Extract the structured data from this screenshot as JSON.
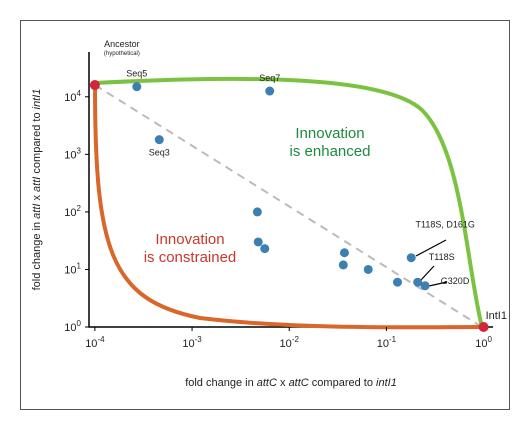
{
  "chart_data": {
    "type": "scatter",
    "xlabel": [
      "fold change in ",
      "attC",
      " x ",
      "attC",
      " compared to ",
      "intI1"
    ],
    "ylabel": [
      "fold change in ",
      "attI",
      " x ",
      "attI",
      " compared to ",
      "intI1"
    ],
    "xscale": "log",
    "yscale": "log",
    "xlim": [
      8.7e-05,
      1.25
    ],
    "ylim": [
      1,
      60000
    ],
    "xticks": [
      {
        "value": 0.0001,
        "label": "10",
        "sup": "-4"
      },
      {
        "value": 0.001,
        "label": "10",
        "sup": "-3"
      },
      {
        "value": 0.01,
        "label": "10",
        "sup": "-2"
      },
      {
        "value": 0.1,
        "label": "10",
        "sup": "-1"
      },
      {
        "value": 1,
        "label": "10",
        "sup": "0"
      }
    ],
    "yticks": [
      {
        "value": 1,
        "label": "10",
        "sup": "0"
      },
      {
        "value": 10,
        "label": "10",
        "sup": "1"
      },
      {
        "value": 100,
        "label": "10",
        "sup": "2"
      },
      {
        "value": 1000,
        "label": "10",
        "sup": "3"
      },
      {
        "value": 10000,
        "label": "10",
        "sup": "4"
      }
    ],
    "points": {
      "color": "#3c7fb1",
      "x": [
        0.00027,
        0.0063,
        0.00046,
        0.0047,
        0.0048,
        0.0056,
        0.037,
        0.036,
        0.065,
        0.13,
        0.18,
        0.21,
        0.25
      ],
      "y": [
        15000,
        12600,
        1800,
        100,
        30,
        23,
        19.5,
        12,
        10,
        6,
        16,
        6,
        5.2
      ],
      "labels": [
        "Seq5",
        "Seq7",
        "Seq3",
        null,
        null,
        null,
        null,
        null,
        null,
        null,
        "T118S, D161G",
        "T118S",
        "G320D"
      ]
    },
    "endpoints": {
      "color": "#d0263a",
      "x": [
        0.0001,
        1
      ],
      "y": [
        16000,
        1
      ],
      "labels": [
        "Ancestor",
        "IntI1"
      ],
      "sublabels": [
        "(hypothetical)",
        null
      ]
    },
    "annotations": [
      {
        "lines": [
          "Innovation",
          "is enhanced"
        ],
        "color": "#1e8a3c"
      },
      {
        "lines": [
          "Innovation",
          "is constrained"
        ],
        "color": "#c8372d"
      }
    ]
  }
}
